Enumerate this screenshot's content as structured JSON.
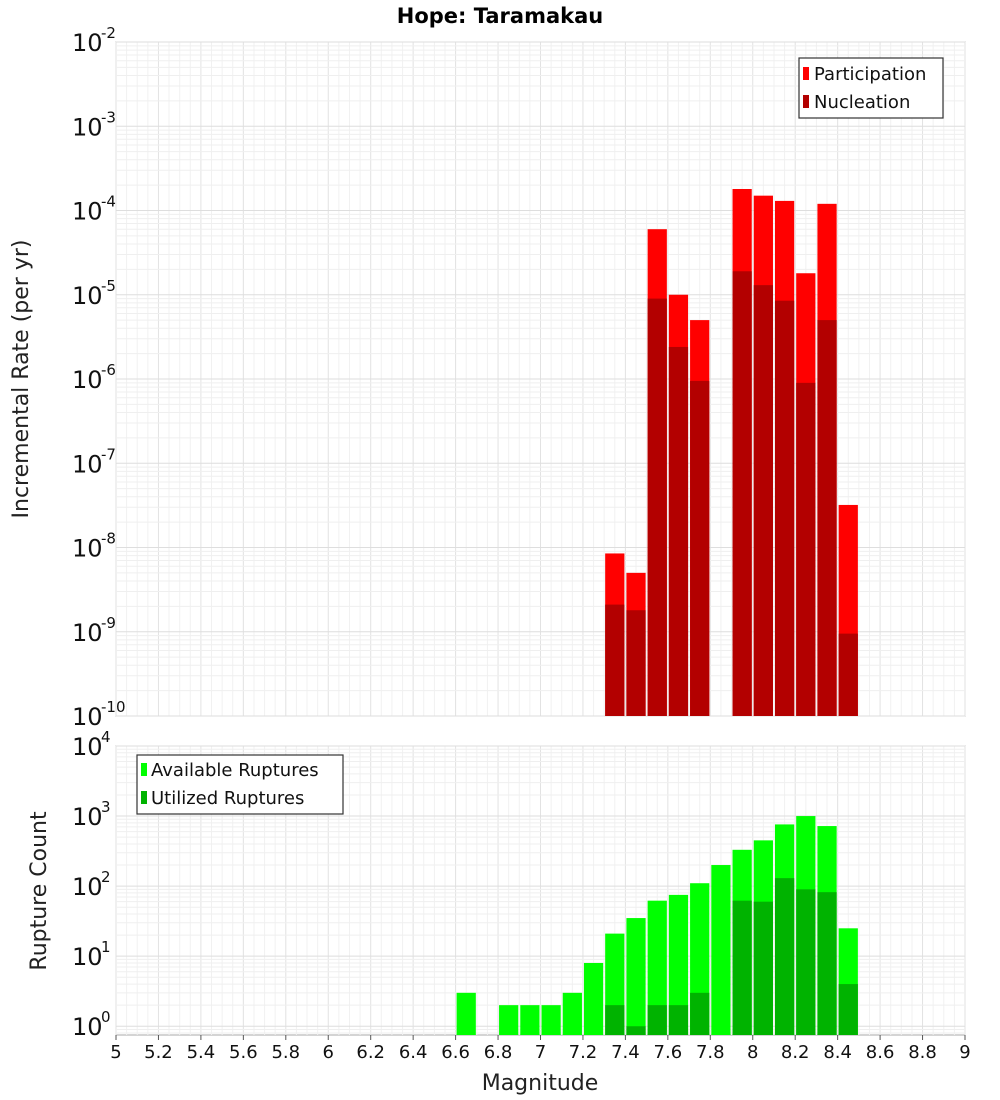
{
  "chart_data": [
    {
      "type": "bar",
      "title": "Hope: Taramakau",
      "xlabel": "Magnitude",
      "ylabel": "Incremental Rate (per yr)",
      "xlim": [
        5,
        9
      ],
      "ylim": [
        1e-10,
        0.01
      ],
      "yscale": "log",
      "ytick_labels": [
        {
          "base": "10",
          "exp": "-10"
        },
        {
          "base": "10",
          "exp": "-9"
        },
        {
          "base": "10",
          "exp": "-8"
        },
        {
          "base": "10",
          "exp": "-7"
        },
        {
          "base": "10",
          "exp": "-6"
        },
        {
          "base": "10",
          "exp": "-5"
        },
        {
          "base": "10",
          "exp": "-4"
        },
        {
          "base": "10",
          "exp": "-3"
        },
        {
          "base": "10",
          "exp": "-2"
        }
      ],
      "grid": true,
      "legend_position": "top-right",
      "bin_width": 0.1,
      "x": [
        7.35,
        7.45,
        7.55,
        7.65,
        7.75,
        7.95,
        8.05,
        8.15,
        8.25,
        8.35,
        8.45
      ],
      "series": [
        {
          "name": "Participation",
          "color": "#ff0000",
          "values": [
            8.5e-09,
            5e-09,
            6e-05,
            1e-05,
            5e-06,
            0.00018,
            0.00015,
            0.00013,
            1.8e-05,
            0.00012,
            3.2e-08
          ]
        },
        {
          "name": "Nucleation",
          "color": "#b30000",
          "values": [
            2.1e-09,
            1.8e-09,
            9e-06,
            2.4e-06,
            9.5e-07,
            1.9e-05,
            1.3e-05,
            8.5e-06,
            9e-07,
            5e-06,
            9.5e-10
          ]
        }
      ]
    },
    {
      "type": "bar",
      "xlabel": "Magnitude",
      "ylabel": "Rupture Count",
      "xlim": [
        5,
        9
      ],
      "ylim": [
        0.75,
        10000
      ],
      "yscale": "log",
      "ytick_labels": [
        {
          "base": "10",
          "exp": "0"
        },
        {
          "base": "10",
          "exp": "1"
        },
        {
          "base": "10",
          "exp": "2"
        },
        {
          "base": "10",
          "exp": "3"
        },
        {
          "base": "10",
          "exp": "4"
        }
      ],
      "xtick_labels": [
        "5",
        "5.2",
        "5.4",
        "5.6",
        "5.8",
        "6",
        "6.2",
        "6.4",
        "6.6",
        "6.8",
        "7",
        "7.2",
        "7.4",
        "7.6",
        "7.8",
        "8",
        "8.2",
        "8.4",
        "8.6",
        "8.8",
        "9"
      ],
      "grid": true,
      "legend_position": "top-left",
      "bin_width": 0.1,
      "x": [
        6.65,
        6.85,
        6.95,
        7.05,
        7.15,
        7.25,
        7.35,
        7.45,
        7.55,
        7.65,
        7.75,
        7.85,
        7.95,
        8.05,
        8.15,
        8.25,
        8.35,
        8.45
      ],
      "series": [
        {
          "name": "Available Ruptures",
          "color": "#00ff00",
          "values": [
            3,
            2,
            2,
            2,
            3,
            8,
            21,
            35,
            62,
            75,
            110,
            200,
            330,
            450,
            760,
            1000,
            720,
            25
          ]
        },
        {
          "name": "Utilized Ruptures",
          "color": "#00b300",
          "values": [
            0,
            0,
            0,
            0,
            0,
            0,
            2,
            1,
            2,
            2,
            3,
            0,
            62,
            60,
            130,
            90,
            82,
            4
          ]
        }
      ]
    }
  ]
}
